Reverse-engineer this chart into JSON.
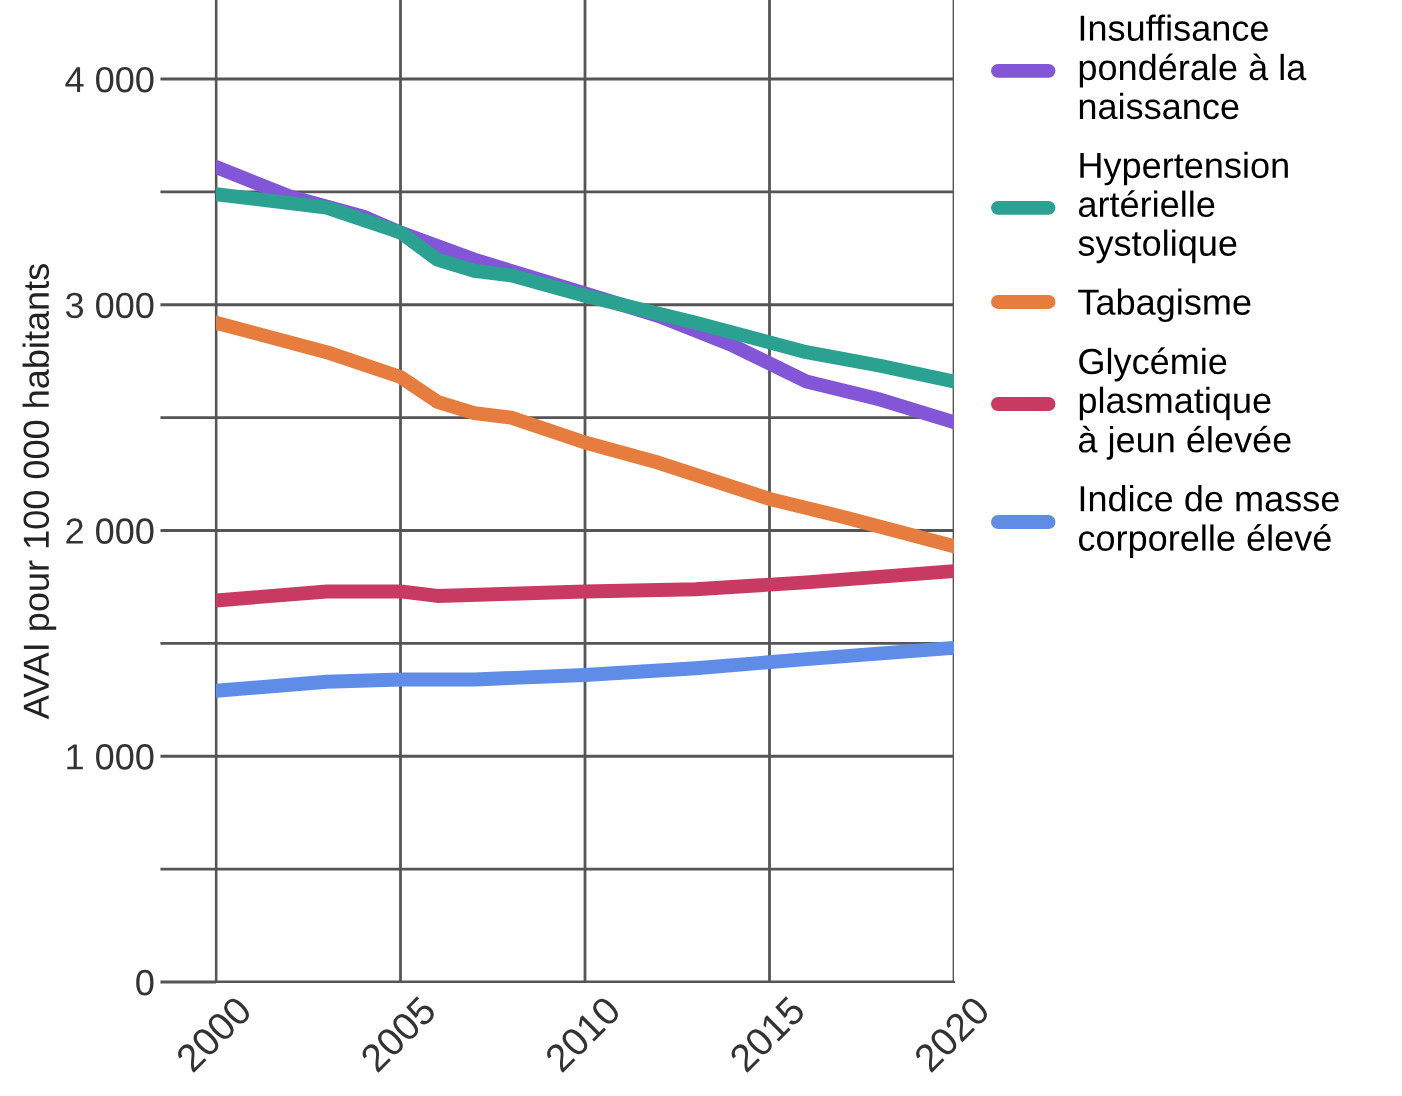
{
  "chart_data": {
    "type": "line",
    "ylabel": "AVAI pour 100 000 habitants",
    "xlim": [
      2000,
      2020
    ],
    "xticks": [
      2000,
      2005,
      2010,
      2015,
      2020
    ],
    "ylim": [
      0,
      4350
    ],
    "yticks": [
      0,
      {
        "value": 500,
        "label": null
      },
      {
        "value": 1000,
        "label": "1 000"
      },
      {
        "value": 1500,
        "label": null
      },
      {
        "value": 2000,
        "label": "2 000"
      },
      {
        "value": 2500,
        "label": null
      },
      {
        "value": 3000,
        "label": "3 000"
      },
      {
        "value": 3500,
        "label": null
      },
      {
        "value": 4000,
        "label": "4 000"
      }
    ],
    "grid": true,
    "legend": "top right",
    "marker": "none",
    "line_style": "solid",
    "series": [
      {
        "name": "Insuffisance\npondérale à la\nnaissance",
        "color": "#8256d6",
        "x": [
          2000,
          2002,
          2004,
          2005,
          2007,
          2010,
          2012,
          2014,
          2016,
          2018,
          2020
        ],
        "values": [
          3610,
          3480,
          3390,
          3320,
          3200,
          3050,
          2950,
          2820,
          2660,
          2580,
          2480
        ]
      },
      {
        "name": "Hypertension\nartérielle\nsystolique",
        "color": "#2aa191",
        "x": [
          2000,
          2003,
          2005,
          2006,
          2007,
          2008,
          2010,
          2013,
          2016,
          2018,
          2020
        ],
        "values": [
          3490,
          3430,
          3320,
          3200,
          3150,
          3130,
          3040,
          2920,
          2790,
          2730,
          2660
        ]
      },
      {
        "name": "Tabagisme",
        "color": "#e67c3e",
        "x": [
          2000,
          2003,
          2005,
          2006,
          2007,
          2008,
          2010,
          2012,
          2015,
          2017,
          2020
        ],
        "values": [
          2920,
          2790,
          2680,
          2570,
          2520,
          2500,
          2390,
          2300,
          2140,
          2060,
          1930
        ]
      },
      {
        "name": "Glycémie\nplasmatique\nà jeun élevée",
        "color": "#c93a63",
        "x": [
          2000,
          2003,
          2005,
          2006,
          2008,
          2010,
          2013,
          2016,
          2020
        ],
        "values": [
          1690,
          1730,
          1730,
          1710,
          1720,
          1730,
          1740,
          1770,
          1820
        ]
      },
      {
        "name": "Indice de masse\ncorporelle élevé",
        "color": "#5f8ce6",
        "x": [
          2000,
          2003,
          2005,
          2007,
          2010,
          2013,
          2016,
          2020
        ],
        "values": [
          1290,
          1330,
          1340,
          1340,
          1360,
          1390,
          1430,
          1480
        ]
      }
    ]
  }
}
